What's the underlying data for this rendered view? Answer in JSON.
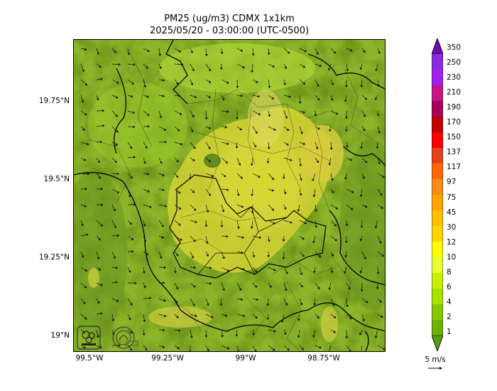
{
  "title": {
    "line1": "PM25 (ug/m3) CDMX 1x1km",
    "line2": "2025/05/20 - 03:00:00 (UTC-0500)"
  },
  "axes": {
    "y_ticks": [
      "19.75°N",
      "19.5°N",
      "19.25°N",
      "19°N"
    ],
    "x_ticks": [
      "99.5°W",
      "99.25°W",
      "99°W",
      "98.75°W"
    ]
  },
  "colorbar": {
    "labels": [
      "350",
      "250",
      "230",
      "210",
      "190",
      "170",
      "150",
      "137",
      "117",
      "97",
      "75",
      "45",
      "30",
      "12",
      "10",
      "8",
      "6",
      "4",
      "2",
      "1"
    ],
    "colors": [
      "#6a0dad",
      "#8a2be2",
      "#a020f0",
      "#c71585",
      "#a8005a",
      "#c00000",
      "#ff0000",
      "#e8401a",
      "#ff6a00",
      "#ff8c1a",
      "#ffa500",
      "#ffc000",
      "#ffd700",
      "#ffff00",
      "#eaff33",
      "#c8f000",
      "#a8e000",
      "#88c800",
      "#70b000",
      "#5a9a10"
    ]
  },
  "wind_key": {
    "label": "5 m/s"
  }
}
